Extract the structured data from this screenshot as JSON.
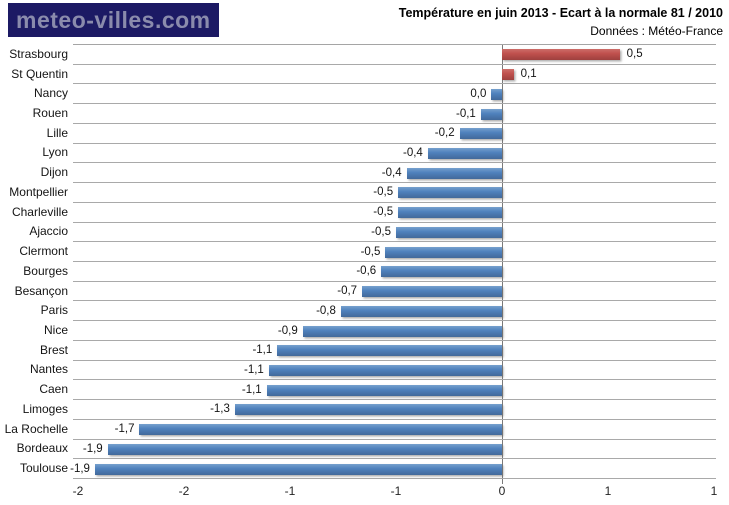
{
  "header": {
    "logo_text": "meteo-villes.com",
    "title": "Température en juin 2013 - Ecart à la normale 81 / 2010",
    "subtitle": "Données : Météo-France"
  },
  "colors": {
    "positive_bar": "#C0504D",
    "negative_bar": "#4F81BD",
    "logo_background": "#1C1A64",
    "logo_text": "#8A8BAC",
    "gridline": "#A9A9A9",
    "zero_line": "#7A7A7A"
  },
  "chart_data": {
    "type": "bar",
    "orientation": "horizontal",
    "title": "Température en juin 2013 - Ecart à la normale 81 / 2010",
    "subtitle": "Données : Météo-France",
    "xlabel": "",
    "ylabel": "",
    "xlim": [
      -2,
      1
    ],
    "grid": "horizontal-row-separators",
    "legend": "none",
    "value_format": "decimal-comma",
    "x_axis": {
      "ticks": [
        "-2",
        "-2",
        "-1",
        "-1",
        "0",
        "1",
        "1"
      ],
      "tick_values": [
        -2,
        -1.5,
        -1,
        -0.5,
        0,
        0.5,
        1
      ]
    },
    "cities": [
      {
        "name": "Strasbourg",
        "label": "0,5",
        "value": 0.5,
        "bar": 0.555
      },
      {
        "name": "St Quentin",
        "label": "0,1",
        "value": 0.1,
        "bar": 0.055
      },
      {
        "name": "Nancy",
        "label": "0,0",
        "value": 0.0,
        "bar": -0.05
      },
      {
        "name": "Rouen",
        "label": "-0,1",
        "value": -0.1,
        "bar": -0.1
      },
      {
        "name": "Lille",
        "label": "-0,2",
        "value": -0.2,
        "bar": -0.2
      },
      {
        "name": "Lyon",
        "label": "-0,4",
        "value": -0.4,
        "bar": -0.35
      },
      {
        "name": "Dijon",
        "label": "-0,4",
        "value": -0.4,
        "bar": -0.45
      },
      {
        "name": "Montpellier",
        "label": "-0,5",
        "value": -0.5,
        "bar": -0.49
      },
      {
        "name": "Charleville",
        "label": "-0,5",
        "value": -0.5,
        "bar": -0.49
      },
      {
        "name": "Ajaccio",
        "label": "-0,5",
        "value": -0.5,
        "bar": -0.5
      },
      {
        "name": "Clermont",
        "label": "-0,5",
        "value": -0.5,
        "bar": -0.55
      },
      {
        "name": "Bourges",
        "label": "-0,6",
        "value": -0.6,
        "bar": -0.57
      },
      {
        "name": "Besançon",
        "label": "-0,7",
        "value": -0.7,
        "bar": -0.66
      },
      {
        "name": "Paris",
        "label": "-0,8",
        "value": -0.8,
        "bar": -0.76
      },
      {
        "name": "Nice",
        "label": "-0,9",
        "value": -0.9,
        "bar": -0.94
      },
      {
        "name": "Brest",
        "label": "-1,1",
        "value": -1.1,
        "bar": -1.06
      },
      {
        "name": "Nantes",
        "label": "-1,1",
        "value": -1.1,
        "bar": -1.1
      },
      {
        "name": "Caen",
        "label": "-1,1",
        "value": -1.1,
        "bar": -1.11
      },
      {
        "name": "Limoges",
        "label": "-1,3",
        "value": -1.3,
        "bar": -1.26
      },
      {
        "name": "La Rochelle",
        "label": "-1,7",
        "value": -1.7,
        "bar": -1.71
      },
      {
        "name": "Bordeaux",
        "label": "-1,9",
        "value": -1.9,
        "bar": -1.86
      },
      {
        "name": "Toulouse",
        "label": "-1,9",
        "value": -1.9,
        "bar": -1.92
      }
    ]
  }
}
